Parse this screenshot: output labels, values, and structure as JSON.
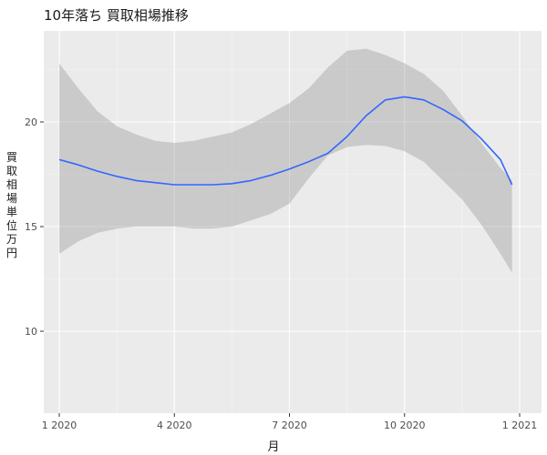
{
  "chart_data": {
    "type": "line",
    "title": "10年落ち 買取相場推移",
    "xlabel": "月",
    "ylabel": "買取相場 単位 万円",
    "x_ticks": [
      "1 2020",
      "4 2020",
      "7 2020",
      "10 2020",
      "1 2021"
    ],
    "x_ticks_month": [
      1,
      4,
      7,
      10,
      13
    ],
    "y_ticks": [
      10,
      15,
      20
    ],
    "xlim": [
      1,
      14.0
    ],
    "ylim": [
      7.8,
      24.2
    ],
    "grid": true,
    "legend": "none",
    "colors": {
      "line": "#3366FF",
      "band": "#999999",
      "panel": "#EBEBEB",
      "grid": "#FFFFFF"
    },
    "series": [
      {
        "type": "smooth",
        "x": [
          1.0,
          1.5,
          2.0,
          2.5,
          3.0,
          3.5,
          4.0,
          4.5,
          5.0,
          5.5,
          6.0,
          6.5,
          7.0,
          7.5,
          8.0,
          8.5,
          9.0,
          9.5,
          10.0,
          10.5,
          11.0,
          11.5,
          12.0,
          12.5,
          12.8
        ],
        "y": [
          18.2,
          17.95,
          17.65,
          17.4,
          17.2,
          17.1,
          17.0,
          17.0,
          17.0,
          17.05,
          17.2,
          17.45,
          17.75,
          18.1,
          18.5,
          19.3,
          20.3,
          21.05,
          21.2,
          21.05,
          20.6,
          20.05,
          19.2,
          18.2,
          17.0
        ],
        "lower": [
          13.7,
          14.3,
          14.7,
          14.9,
          15.0,
          15.0,
          15.0,
          14.9,
          14.9,
          15.0,
          15.3,
          15.6,
          16.1,
          17.3,
          18.4,
          18.8,
          18.9,
          18.85,
          18.6,
          18.1,
          17.2,
          16.3,
          15.1,
          13.7,
          12.8
        ],
        "upper": [
          22.8,
          21.6,
          20.5,
          19.8,
          19.4,
          19.1,
          19.0,
          19.1,
          19.3,
          19.5,
          19.9,
          20.4,
          20.9,
          21.6,
          22.6,
          23.4,
          23.5,
          23.2,
          22.8,
          22.3,
          21.5,
          20.3,
          19.0,
          17.8,
          17.2
        ]
      }
    ]
  }
}
